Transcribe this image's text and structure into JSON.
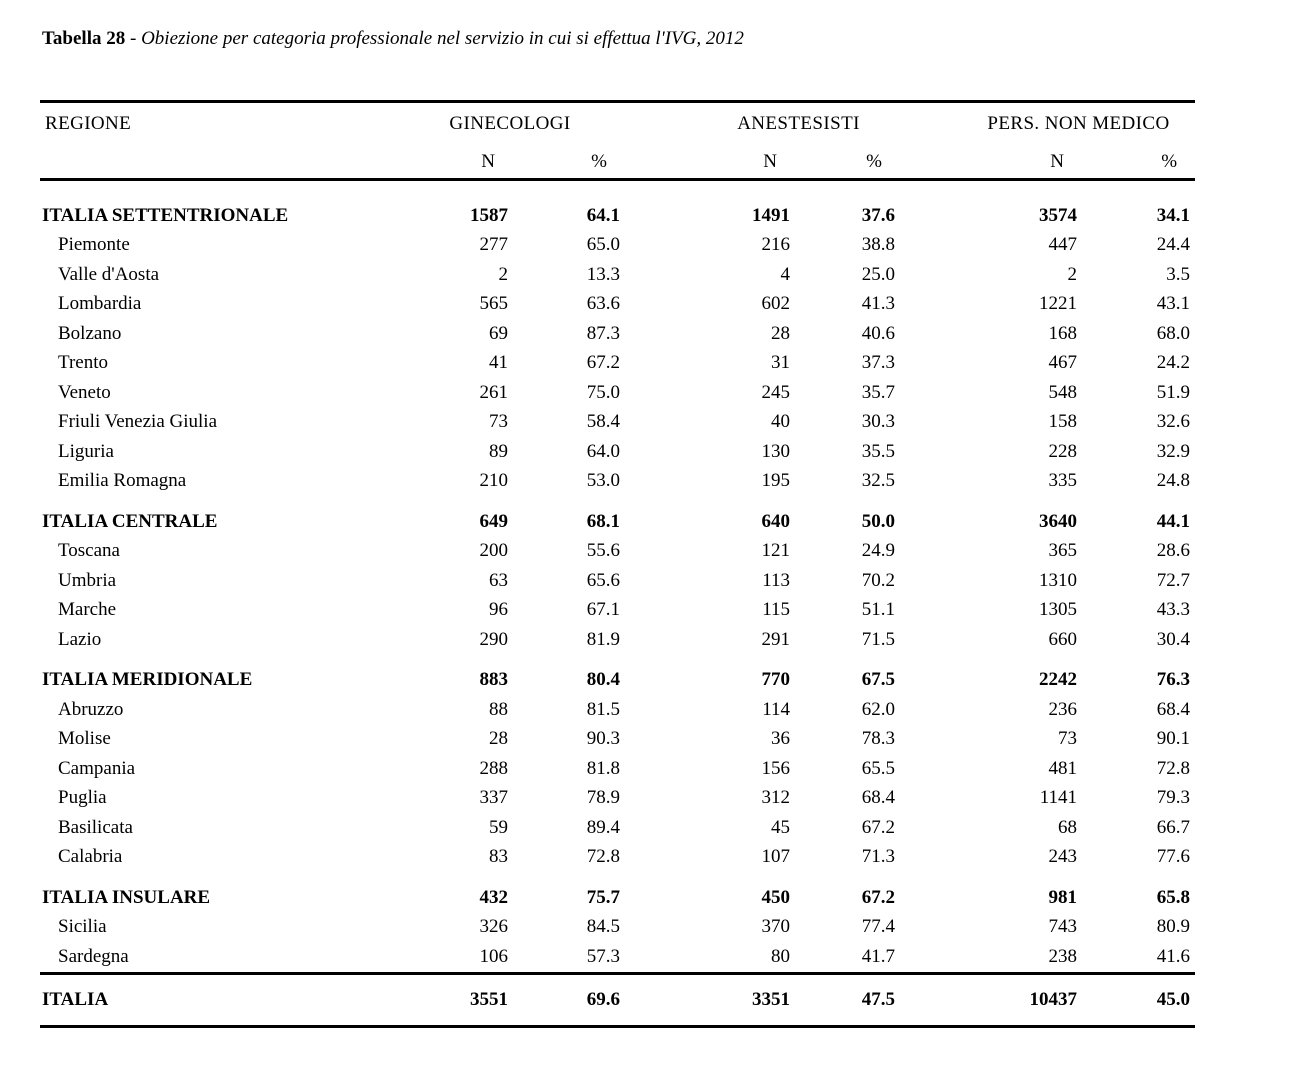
{
  "title": {
    "label": "Tabella 28",
    "separator": " - ",
    "caption": "Obiezione per categoria professionale nel servizio in cui si effettua l'IVG, 2012"
  },
  "table": {
    "header": {
      "region": "REGIONE",
      "groups": [
        {
          "label": "GINECOLOGI"
        },
        {
          "label": "ANESTESISTI"
        },
        {
          "label": "PERS. NON MEDICO"
        }
      ],
      "sub": {
        "n": "N",
        "pct": "%"
      }
    },
    "sections": [
      {
        "header": {
          "name": "ITALIA SETTENTRIONALE",
          "values": [
            "1587",
            "64.1",
            "1491",
            "37.6",
            "3574",
            "34.1"
          ]
        },
        "rows": [
          {
            "name": "Piemonte",
            "values": [
              "277",
              "65.0",
              "216",
              "38.8",
              "447",
              "24.4"
            ]
          },
          {
            "name": "Valle d'Aosta",
            "values": [
              "2",
              "13.3",
              "4",
              "25.0",
              "2",
              "3.5"
            ]
          },
          {
            "name": "Lombardia",
            "values": [
              "565",
              "63.6",
              "602",
              "41.3",
              "1221",
              "43.1"
            ]
          },
          {
            "name": "Bolzano",
            "values": [
              "69",
              "87.3",
              "28",
              "40.6",
              "168",
              "68.0"
            ]
          },
          {
            "name": "Trento",
            "values": [
              "41",
              "67.2",
              "31",
              "37.3",
              "467",
              "24.2"
            ]
          },
          {
            "name": "Veneto",
            "values": [
              "261",
              "75.0",
              "245",
              "35.7",
              "548",
              "51.9"
            ]
          },
          {
            "name": "Friuli Venezia Giulia",
            "values": [
              "73",
              "58.4",
              "40",
              "30.3",
              "158",
              "32.6"
            ]
          },
          {
            "name": "Liguria",
            "values": [
              "89",
              "64.0",
              "130",
              "35.5",
              "228",
              "32.9"
            ]
          },
          {
            "name": "Emilia Romagna",
            "values": [
              "210",
              "53.0",
              "195",
              "32.5",
              "335",
              "24.8"
            ]
          }
        ]
      },
      {
        "header": {
          "name": "ITALIA CENTRALE",
          "values": [
            "649",
            "68.1",
            "640",
            "50.0",
            "3640",
            "44.1"
          ]
        },
        "rows": [
          {
            "name": "Toscana",
            "values": [
              "200",
              "55.6",
              "121",
              "24.9",
              "365",
              "28.6"
            ]
          },
          {
            "name": "Umbria",
            "values": [
              "63",
              "65.6",
              "113",
              "70.2",
              "1310",
              "72.7"
            ]
          },
          {
            "name": "Marche",
            "values": [
              "96",
              "67.1",
              "115",
              "51.1",
              "1305",
              "43.3"
            ]
          },
          {
            "name": "Lazio",
            "values": [
              "290",
              "81.9",
              "291",
              "71.5",
              "660",
              "30.4"
            ]
          }
        ]
      },
      {
        "header": {
          "name": "ITALIA MERIDIONALE",
          "values": [
            "883",
            "80.4",
            "770",
            "67.5",
            "2242",
            "76.3"
          ]
        },
        "rows": [
          {
            "name": "Abruzzo",
            "values": [
              "88",
              "81.5",
              "114",
              "62.0",
              "236",
              "68.4"
            ]
          },
          {
            "name": "Molise",
            "values": [
              "28",
              "90.3",
              "36",
              "78.3",
              "73",
              "90.1"
            ]
          },
          {
            "name": "Campania",
            "values": [
              "288",
              "81.8",
              "156",
              "65.5",
              "481",
              "72.8"
            ]
          },
          {
            "name": "Puglia",
            "values": [
              "337",
              "78.9",
              "312",
              "68.4",
              "1141",
              "79.3"
            ]
          },
          {
            "name": "Basilicata",
            "values": [
              "59",
              "89.4",
              "45",
              "67.2",
              "68",
              "66.7"
            ]
          },
          {
            "name": "Calabria",
            "values": [
              "83",
              "72.8",
              "107",
              "71.3",
              "243",
              "77.6"
            ]
          }
        ]
      },
      {
        "header": {
          "name": "ITALIA INSULARE",
          "values": [
            "432",
            "75.7",
            "450",
            "67.2",
            "981",
            "65.8"
          ]
        },
        "rows": [
          {
            "name": "Sicilia",
            "values": [
              "326",
              "84.5",
              "370",
              "77.4",
              "743",
              "80.9"
            ]
          },
          {
            "name": "Sardegna",
            "values": [
              "106",
              "57.3",
              "80",
              "41.7",
              "238",
              "41.6"
            ]
          }
        ]
      }
    ],
    "total": {
      "name": "ITALIA",
      "values": [
        "3551",
        "69.6",
        "3351",
        "47.5",
        "10437",
        "45.0"
      ]
    }
  }
}
